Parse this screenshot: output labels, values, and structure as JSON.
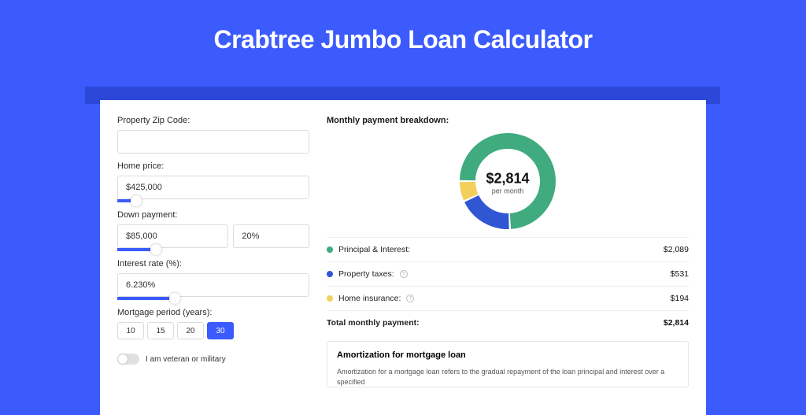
{
  "page": {
    "title": "Crabtree Jumbo Loan Calculator",
    "background_color": "#3b5bfd",
    "accent_color": "#3b5bfd"
  },
  "form": {
    "zip": {
      "label": "Property Zip Code:",
      "value": ""
    },
    "home_price": {
      "label": "Home price:",
      "value": "$425,000",
      "slider_percent": 10
    },
    "down_payment": {
      "label": "Down payment:",
      "amount": "$85,000",
      "percent_text": "20%",
      "slider_percent": 20
    },
    "interest_rate": {
      "label": "Interest rate (%):",
      "value": "6.230%",
      "slider_percent": 30
    },
    "mortgage_period": {
      "label": "Mortgage period (years):",
      "options": [
        "10",
        "15",
        "20",
        "30"
      ],
      "selected": "30"
    },
    "veteran": {
      "label": "I am veteran or military",
      "checked": false
    }
  },
  "breakdown": {
    "title": "Monthly payment breakdown:",
    "center_amount": "$2,814",
    "center_sub": "per month",
    "donut": {
      "type": "donut",
      "size": 122,
      "thickness": 20,
      "start_angle_deg": 180,
      "slices": [
        {
          "key": "principal_interest",
          "value": 2089,
          "color": "#3fab7f"
        },
        {
          "key": "property_taxes",
          "value": 531,
          "color": "#3056d3"
        },
        {
          "key": "home_insurance",
          "value": 194,
          "color": "#f2cf5b"
        }
      ]
    },
    "items": [
      {
        "dot_color": "#3fab7f",
        "label": "Principal & Interest:",
        "info": false,
        "value": "$2,089"
      },
      {
        "dot_color": "#3056d3",
        "label": "Property taxes:",
        "info": true,
        "value": "$531"
      },
      {
        "dot_color": "#f2cf5b",
        "label": "Home insurance:",
        "info": true,
        "value": "$194"
      }
    ],
    "total": {
      "label": "Total monthly payment:",
      "value": "$2,814"
    }
  },
  "amortization": {
    "title": "Amortization for mortgage loan",
    "text": "Amortization for a mortgage loan refers to the gradual repayment of the loan principal and interest over a specified"
  }
}
